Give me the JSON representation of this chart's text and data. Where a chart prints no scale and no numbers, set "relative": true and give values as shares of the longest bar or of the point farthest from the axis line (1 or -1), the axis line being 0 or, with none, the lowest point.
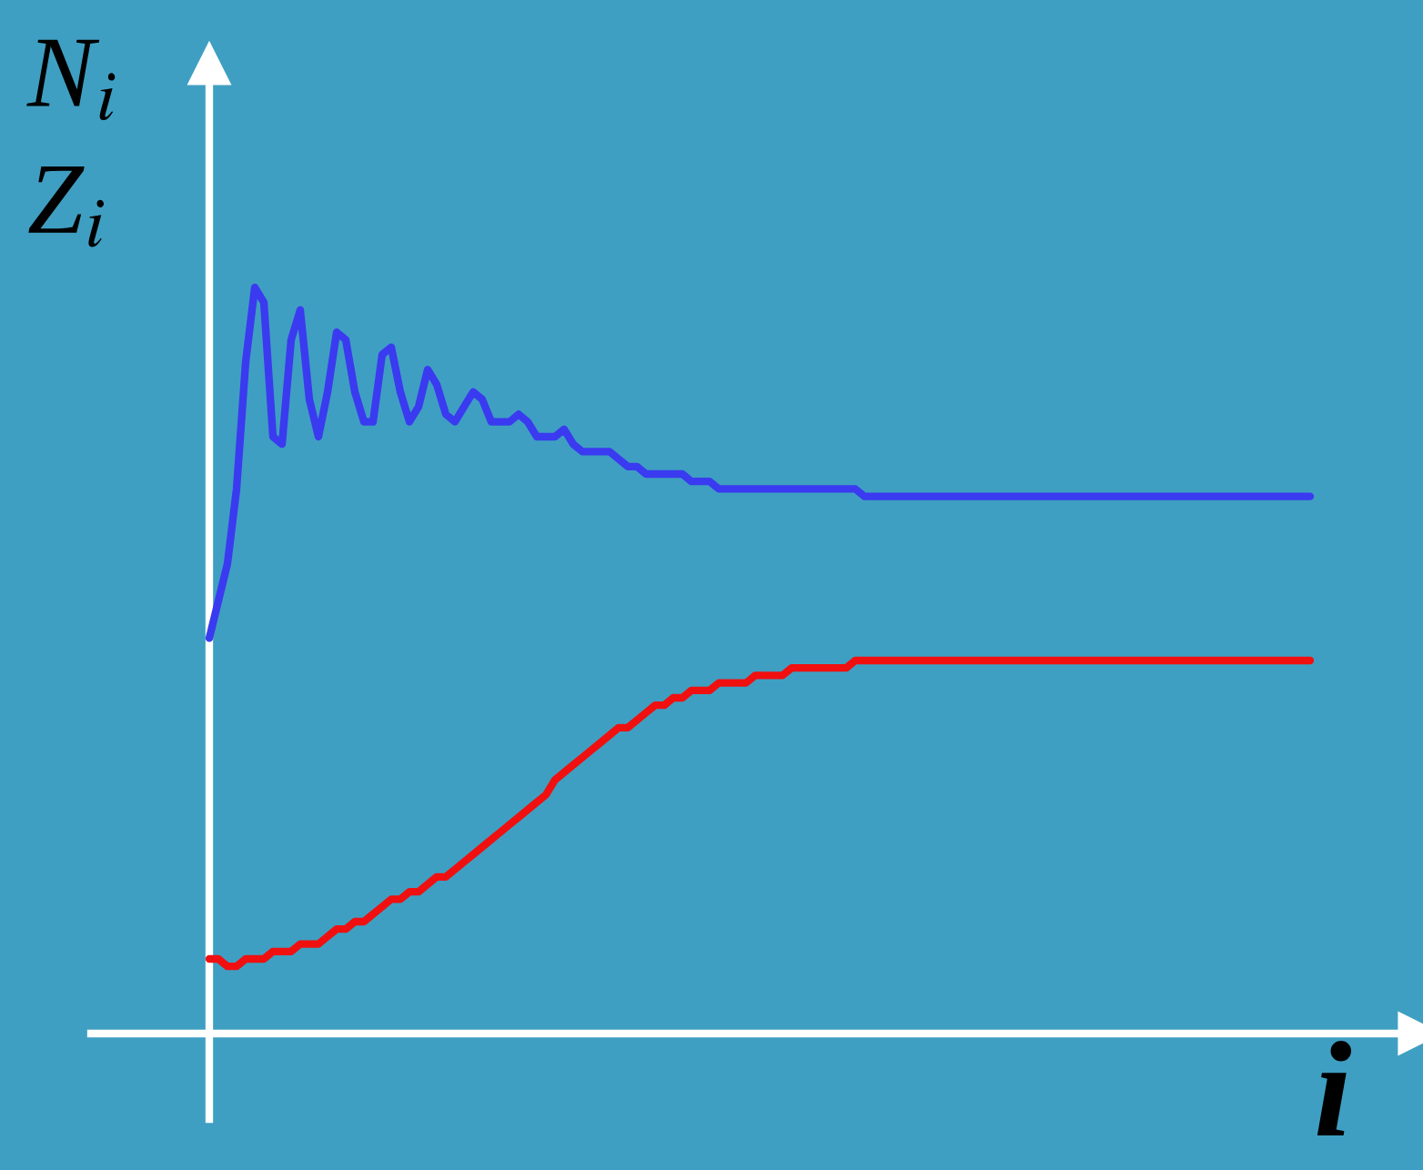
{
  "chart_data": {
    "type": "line",
    "relative": true,
    "xlabel": "i",
    "ylabel": "N$_{i}$\nZ$_{i}$",
    "categories": [
      null,
      null,
      null,
      null,
      null,
      null,
      null,
      null,
      null,
      null,
      null,
      null,
      null,
      null,
      null,
      null,
      null,
      null,
      null,
      null,
      null,
      null,
      null,
      null,
      null,
      null,
      null,
      null,
      null,
      null,
      null,
      null,
      null,
      null,
      null,
      null,
      null,
      null,
      null,
      null,
      null,
      null,
      null,
      null,
      null,
      null,
      null,
      null,
      null,
      null,
      null,
      null,
      null,
      null,
      null,
      null,
      null,
      null,
      null,
      null,
      null,
      null,
      null,
      null,
      null,
      null,
      null,
      null,
      null,
      null,
      null,
      null,
      null,
      null,
      null,
      null,
      null,
      null,
      null,
      null,
      null,
      null,
      null,
      null,
      null,
      null,
      null,
      null,
      null,
      null,
      null,
      null,
      null,
      null,
      null,
      null,
      null,
      null,
      null,
      null,
      null,
      null,
      null,
      null,
      null,
      null,
      null,
      null,
      null,
      null,
      null,
      null,
      null,
      null,
      null,
      null,
      null,
      null,
      null,
      null,
      null,
      null
    ],
    "series": [
      {
        "color": "#3a3af0",
        "values": [
          0.53,
          0.58,
          0.63,
          0.73,
          0.9,
          1.0,
          0.98,
          0.8,
          0.79,
          0.93,
          0.97,
          0.85,
          0.8,
          0.86,
          0.94,
          0.93,
          0.86,
          0.82,
          0.82,
          0.91,
          0.92,
          0.86,
          0.82,
          0.84,
          0.89,
          0.87,
          0.83,
          0.82,
          0.84,
          0.86,
          0.85,
          0.82,
          0.82,
          0.82,
          0.83,
          0.82,
          0.8,
          0.8,
          0.8,
          0.81,
          0.79,
          0.78,
          0.78,
          0.78,
          0.78,
          0.77,
          0.76,
          0.76,
          0.75,
          0.75,
          0.75,
          0.75,
          0.75,
          0.74,
          0.74,
          0.74,
          0.73,
          0.73,
          0.73,
          0.73,
          0.73,
          0.73,
          0.73,
          0.73,
          0.73,
          0.73,
          0.73,
          0.73,
          0.73,
          0.73,
          0.73,
          0.73,
          0.72,
          0.72,
          0.72,
          0.72,
          0.72,
          0.72,
          0.72,
          0.72,
          0.72,
          0.72,
          0.72,
          0.72,
          0.72,
          0.72,
          0.72,
          0.72,
          0.72,
          0.72,
          0.72,
          0.72,
          0.72,
          0.72,
          0.72,
          0.72,
          0.72,
          0.72,
          0.72,
          0.72,
          0.72,
          0.72,
          0.72,
          0.72,
          0.72,
          0.72,
          0.72,
          0.72,
          0.72,
          0.72,
          0.72,
          0.72,
          0.72,
          0.72,
          0.72,
          0.72,
          0.72,
          0.72,
          0.72,
          0.72,
          0.72,
          0.72
        ]
      },
      {
        "color": "#f01010",
        "values": [
          0.1,
          0.1,
          0.09,
          0.09,
          0.1,
          0.1,
          0.1,
          0.11,
          0.11,
          0.11,
          0.12,
          0.12,
          0.12,
          0.13,
          0.14,
          0.14,
          0.15,
          0.15,
          0.16,
          0.17,
          0.18,
          0.18,
          0.19,
          0.19,
          0.2,
          0.21,
          0.21,
          0.22,
          0.23,
          0.24,
          0.25,
          0.26,
          0.27,
          0.28,
          0.29,
          0.3,
          0.31,
          0.32,
          0.34,
          0.35,
          0.36,
          0.37,
          0.38,
          0.39,
          0.4,
          0.41,
          0.41,
          0.42,
          0.43,
          0.44,
          0.44,
          0.45,
          0.45,
          0.46,
          0.46,
          0.46,
          0.47,
          0.47,
          0.47,
          0.47,
          0.48,
          0.48,
          0.48,
          0.48,
          0.49,
          0.49,
          0.49,
          0.49,
          0.49,
          0.49,
          0.49,
          0.5,
          0.5,
          0.5,
          0.5,
          0.5,
          0.5,
          0.5,
          0.5,
          0.5,
          0.5,
          0.5,
          0.5,
          0.5,
          0.5,
          0.5,
          0.5,
          0.5,
          0.5,
          0.5,
          0.5,
          0.5,
          0.5,
          0.5,
          0.5,
          0.5,
          0.5,
          0.5,
          0.5,
          0.5,
          0.5,
          0.5,
          0.5,
          0.5,
          0.5,
          0.5,
          0.5,
          0.5,
          0.5,
          0.5,
          0.5,
          0.5,
          0.5,
          0.5,
          0.5,
          0.5,
          0.5,
          0.5,
          0.5,
          0.5,
          0.5,
          0.5
        ]
      }
    ]
  }
}
